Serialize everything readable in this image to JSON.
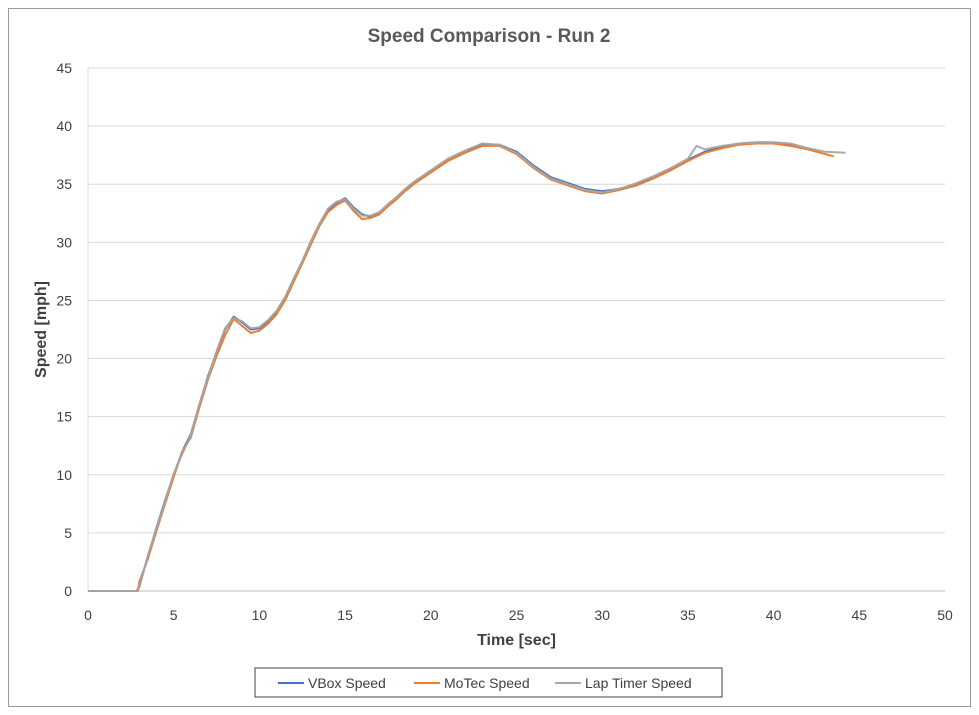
{
  "chart_data": {
    "type": "line",
    "title": "Speed Comparison - Run 2",
    "xlabel": "Time [sec]",
    "ylabel": "Speed [mph]",
    "xlim": [
      0,
      50
    ],
    "ylim": [
      0,
      45
    ],
    "x_ticks": [
      0,
      5,
      10,
      15,
      20,
      25,
      30,
      35,
      40,
      45,
      50
    ],
    "y_ticks": [
      0,
      5,
      10,
      15,
      20,
      25,
      30,
      35,
      40,
      45
    ],
    "grid": "horizontal",
    "legend_position": "bottom",
    "series": [
      {
        "name": "VBox Speed",
        "color": "#4472C4",
        "points": [
          [
            0,
            0
          ],
          [
            2.9,
            0
          ],
          [
            3.0,
            0.5
          ],
          [
            3.5,
            3
          ],
          [
            4,
            5.5
          ],
          [
            4.5,
            7.8
          ],
          [
            5,
            10
          ],
          [
            5.5,
            12
          ],
          [
            6,
            13.5
          ],
          [
            6.5,
            16
          ],
          [
            7,
            18.5
          ],
          [
            7.5,
            20.5
          ],
          [
            8,
            22.5
          ],
          [
            8.5,
            23.6
          ],
          [
            9,
            23.1
          ],
          [
            9.5,
            22.5
          ],
          [
            10,
            22.6
          ],
          [
            10.5,
            23.2
          ],
          [
            11,
            24
          ],
          [
            11.5,
            25.2
          ],
          [
            12,
            26.8
          ],
          [
            12.5,
            28.3
          ],
          [
            13,
            30
          ],
          [
            13.5,
            31.5
          ],
          [
            14,
            32.8
          ],
          [
            14.5,
            33.4
          ],
          [
            15,
            33.8
          ],
          [
            15.5,
            33
          ],
          [
            16,
            32.4
          ],
          [
            16.5,
            32.2
          ],
          [
            17,
            32.5
          ],
          [
            17.5,
            33.2
          ],
          [
            18,
            33.8
          ],
          [
            18.5,
            34.5
          ],
          [
            19,
            35.1
          ],
          [
            20,
            36.1
          ],
          [
            21,
            37.1
          ],
          [
            22,
            37.8
          ],
          [
            23,
            38.4
          ],
          [
            24,
            38.4
          ],
          [
            25,
            37.8
          ],
          [
            26,
            36.6
          ],
          [
            27,
            35.6
          ],
          [
            28,
            35.1
          ],
          [
            29,
            34.6
          ],
          [
            30,
            34.4
          ],
          [
            31,
            34.6
          ],
          [
            32,
            35
          ],
          [
            33,
            35.6
          ],
          [
            34,
            36.3
          ],
          [
            35,
            37.1
          ],
          [
            36,
            37.8
          ],
          [
            37,
            38.2
          ],
          [
            38,
            38.5
          ],
          [
            39,
            38.6
          ],
          [
            40,
            38.6
          ],
          [
            41,
            38.4
          ],
          [
            42,
            38.1
          ],
          [
            42.5,
            37.8
          ]
        ]
      },
      {
        "name": "MoTec Speed",
        "color": "#ED7D31",
        "points": [
          [
            0,
            0
          ],
          [
            2.9,
            0
          ],
          [
            3.0,
            0.8
          ],
          [
            3.5,
            2.8
          ],
          [
            4,
            5.2
          ],
          [
            4.5,
            7.5
          ],
          [
            5,
            9.8
          ],
          [
            5.5,
            12
          ],
          [
            6,
            13.2
          ],
          [
            6.5,
            15.8
          ],
          [
            7,
            18.2
          ],
          [
            7.5,
            20.2
          ],
          [
            8,
            22
          ],
          [
            8.5,
            23.4
          ],
          [
            9,
            22.8
          ],
          [
            9.5,
            22.2
          ],
          [
            10,
            22.4
          ],
          [
            10.5,
            23
          ],
          [
            11,
            23.8
          ],
          [
            11.5,
            25
          ],
          [
            12,
            26.6
          ],
          [
            12.5,
            28.2
          ],
          [
            13,
            29.8
          ],
          [
            13.5,
            31.4
          ],
          [
            14,
            32.6
          ],
          [
            14.5,
            33.2
          ],
          [
            15,
            33.6
          ],
          [
            15.5,
            32.7
          ],
          [
            16,
            32
          ],
          [
            16.5,
            32.1
          ],
          [
            17,
            32.4
          ],
          [
            17.5,
            33.1
          ],
          [
            18,
            33.7
          ],
          [
            18.5,
            34.4
          ],
          [
            19,
            35
          ],
          [
            20,
            36
          ],
          [
            21,
            37
          ],
          [
            22,
            37.7
          ],
          [
            23,
            38.3
          ],
          [
            24,
            38.3
          ],
          [
            25,
            37.6
          ],
          [
            26,
            36.4
          ],
          [
            27,
            35.4
          ],
          [
            28,
            34.9
          ],
          [
            29,
            34.4
          ],
          [
            30,
            34.2
          ],
          [
            31,
            34.5
          ],
          [
            32,
            34.9
          ],
          [
            33,
            35.5
          ],
          [
            34,
            36.2
          ],
          [
            35,
            37
          ],
          [
            36,
            37.7
          ],
          [
            37,
            38.1
          ],
          [
            38,
            38.4
          ],
          [
            39,
            38.5
          ],
          [
            40,
            38.5
          ],
          [
            41,
            38.3
          ],
          [
            42,
            38
          ],
          [
            43,
            37.6
          ],
          [
            43.5,
            37.4
          ]
        ]
      },
      {
        "name": "Lap Timer Speed",
        "color": "#A5A5A5",
        "points": [
          [
            0,
            0
          ],
          [
            2.8,
            0
          ],
          [
            3.0,
            0.3
          ],
          [
            3.5,
            3.1
          ],
          [
            4,
            5.4
          ],
          [
            4.5,
            7.7
          ],
          [
            5,
            10.1
          ],
          [
            5.5,
            11.8
          ],
          [
            6,
            13.4
          ],
          [
            6.5,
            16.1
          ],
          [
            7,
            18.4
          ],
          [
            7.5,
            20.6
          ],
          [
            8,
            22.6
          ],
          [
            8.5,
            23.5
          ],
          [
            9,
            23.2
          ],
          [
            9.5,
            22.6
          ],
          [
            10,
            22.7
          ],
          [
            10.5,
            23.3
          ],
          [
            11,
            24.1
          ],
          [
            11.5,
            25.3
          ],
          [
            12,
            26.9
          ],
          [
            12.5,
            28.4
          ],
          [
            13,
            30.1
          ],
          [
            13.5,
            31.6
          ],
          [
            14,
            32.9
          ],
          [
            14.5,
            33.5
          ],
          [
            15,
            33.7
          ],
          [
            15.5,
            32.9
          ],
          [
            16,
            32.3
          ],
          [
            16.5,
            32.3
          ],
          [
            17,
            32.6
          ],
          [
            17.5,
            33.3
          ],
          [
            18,
            33.9
          ],
          [
            18.5,
            34.6
          ],
          [
            19,
            35.2
          ],
          [
            20,
            36.2
          ],
          [
            21,
            37.2
          ],
          [
            22,
            37.9
          ],
          [
            23,
            38.5
          ],
          [
            24,
            38.4
          ],
          [
            25,
            37.7
          ],
          [
            26,
            36.5
          ],
          [
            27,
            35.5
          ],
          [
            28,
            35
          ],
          [
            29,
            34.5
          ],
          [
            30,
            34.3
          ],
          [
            31,
            34.6
          ],
          [
            32,
            35.1
          ],
          [
            33,
            35.7
          ],
          [
            34,
            36.4
          ],
          [
            35,
            37.2
          ],
          [
            35.5,
            38.3
          ],
          [
            36,
            38
          ],
          [
            37,
            38.3
          ],
          [
            38,
            38.5
          ],
          [
            39,
            38.6
          ],
          [
            40,
            38.6
          ],
          [
            41,
            38.5
          ],
          [
            42,
            38.1
          ],
          [
            43,
            37.8
          ],
          [
            44.2,
            37.7
          ]
        ]
      }
    ]
  }
}
